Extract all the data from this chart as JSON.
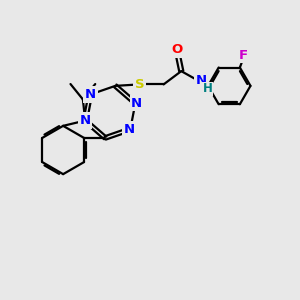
{
  "background_color": "#e8e8e8",
  "bond_color": "#000000",
  "atom_colors": {
    "N": "#0000ff",
    "O": "#ff0000",
    "S": "#cccc00",
    "F": "#cc00cc",
    "H": "#008080",
    "C": "#000000"
  },
  "figsize": [
    3.0,
    3.0
  ],
  "dpi": 100
}
